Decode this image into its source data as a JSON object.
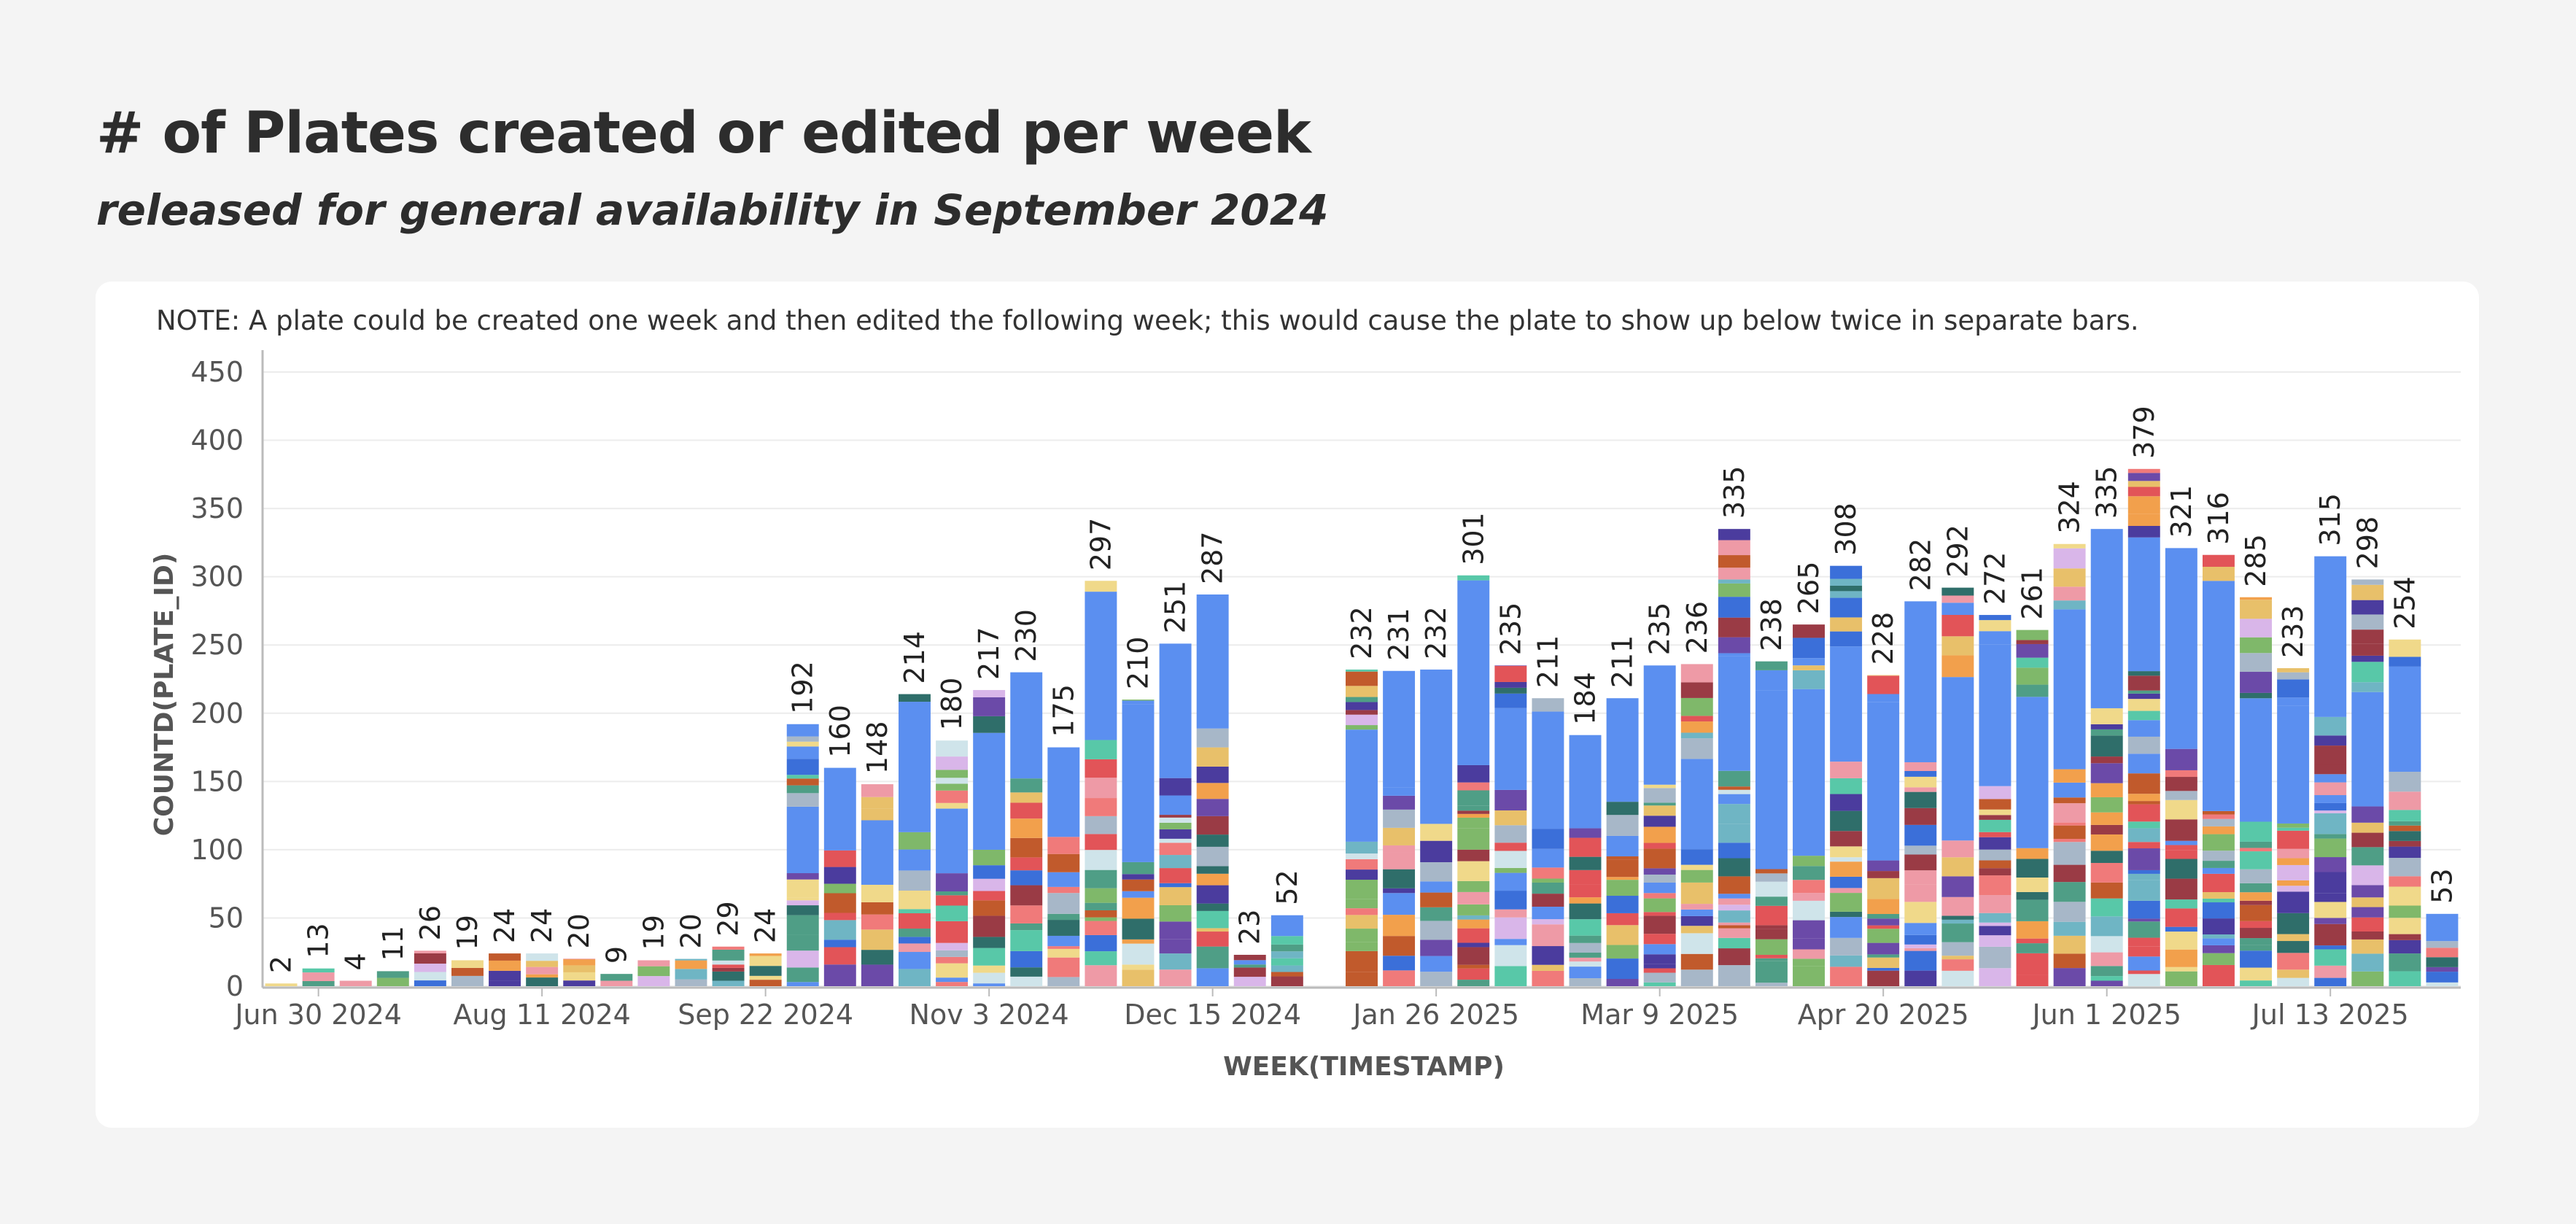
{
  "header": {
    "title": "# of Plates created or edited per week",
    "subtitle": "released for general availability in September 2024"
  },
  "note": "NOTE: A plate could be created one week and then edited the following week; this would cause the plate to show up below twice in separate bars.",
  "chart_data": {
    "type": "bar",
    "stacked": true,
    "xlabel": "WEEK(TIMESTAMP)",
    "ylabel": "COUNTD(PLATE_ID)",
    "ylim": [
      0,
      450
    ],
    "yticks": [
      0,
      50,
      100,
      150,
      200,
      250,
      300,
      350,
      400,
      450
    ],
    "grid": true,
    "x_tick_labels": [
      {
        "label": "Jun 30 2024",
        "index": 1
      },
      {
        "label": "Aug 11 2024",
        "index": 7
      },
      {
        "label": "Sep 22 2024",
        "index": 13
      },
      {
        "label": "Nov 3 2024",
        "index": 19
      },
      {
        "label": "Dec 15 2024",
        "index": 25
      },
      {
        "label": "Jan 26 2025",
        "index": 31
      },
      {
        "label": "Mar 9 2025",
        "index": 37
      },
      {
        "label": "Apr 20 2025",
        "index": 43
      },
      {
        "label": "Jun 1 2025",
        "index": 49
      },
      {
        "label": "Jul 13 2025",
        "index": 55
      }
    ],
    "values": [
      2,
      13,
      4,
      11,
      26,
      19,
      24,
      24,
      20,
      9,
      19,
      20,
      29,
      24,
      192,
      160,
      148,
      214,
      180,
      217,
      230,
      175,
      297,
      210,
      251,
      287,
      23,
      52,
      null,
      232,
      231,
      232,
      301,
      235,
      211,
      184,
      211,
      235,
      236,
      335,
      238,
      265,
      308,
      228,
      282,
      292,
      272,
      261,
      324,
      335,
      379,
      321,
      316,
      285,
      233,
      315,
      298,
      254,
      53
    ],
    "primary_color": "#5b8ff0",
    "palette": [
      "#5b8ff0",
      "#cfe4ea",
      "#f07a7a",
      "#e8c06a",
      "#4f9e86",
      "#f2a04c",
      "#4b3c9e",
      "#6fb5c4",
      "#e25458",
      "#d9b6e9",
      "#ee9aa6",
      "#c15a2c",
      "#7fb86a",
      "#a7b7c8",
      "#3b6fd9",
      "#58c8a8",
      "#9a3b45",
      "#2f6e6a",
      "#f0d98a",
      "#6b4aa8"
    ]
  }
}
